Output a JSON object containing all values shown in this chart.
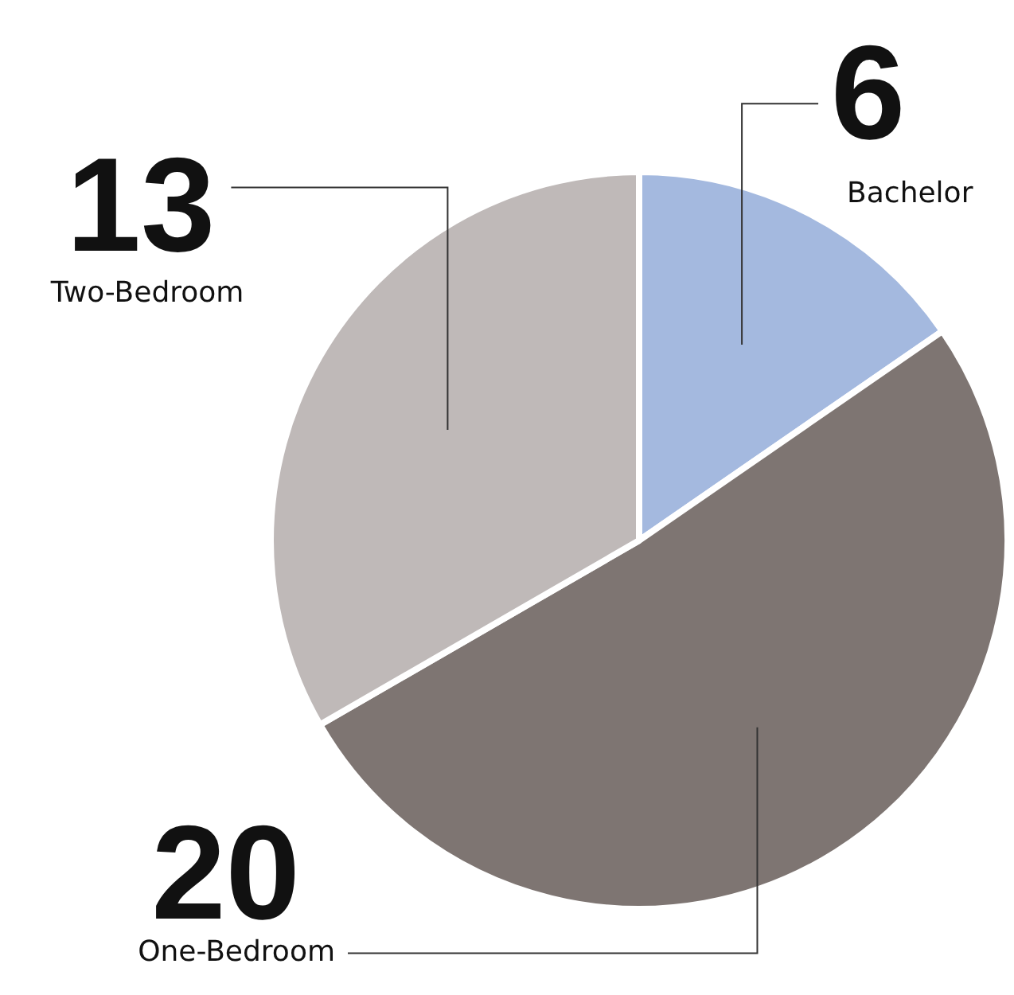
{
  "chart_data": {
    "type": "pie",
    "categories": [
      "Bachelor",
      "One-Bedroom",
      "Two-Bedroom"
    ],
    "values": [
      6,
      20,
      13
    ],
    "colors": [
      "#a4b9df",
      "#7e7572",
      "#bfb9b8"
    ],
    "data_labels": true,
    "legend": false
  }
}
